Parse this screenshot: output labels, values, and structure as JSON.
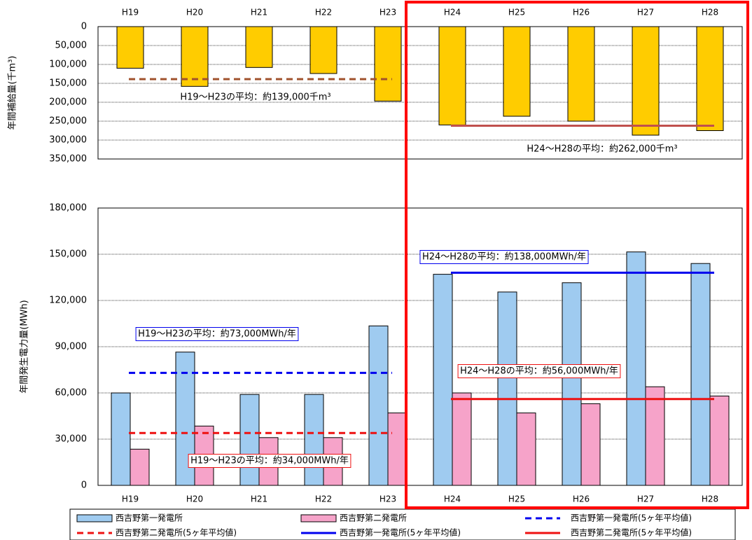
{
  "chart_data": [
    {
      "type": "bar",
      "ylabel": "年間補給量(千m³)",
      "categories": [
        "H19",
        "H20",
        "H21",
        "H22",
        "H23",
        "H24",
        "H25",
        "H26",
        "H27",
        "H28"
      ],
      "values": [
        110000,
        158000,
        108000,
        124000,
        197000,
        260000,
        237000,
        250000,
        287000,
        275000
      ],
      "color": "#ffcc00",
      "ylim": [
        0,
        350000
      ],
      "inverted": true,
      "grid": true,
      "yticks": [
        0,
        {
          "value": 50000,
          "label": "50,000"
        },
        {
          "value": 100000,
          "label": "100,000"
        },
        {
          "value": 150000,
          "label": "150,000"
        },
        {
          "value": 200000,
          "label": "200,000"
        },
        {
          "value": 250000,
          "label": "250,000"
        },
        {
          "value": 300000,
          "label": "300,000"
        },
        {
          "value": 350000,
          "label": "350,000"
        }
      ],
      "reference_lines": [
        {
          "value": 139000,
          "from": "H19",
          "to": "H23",
          "color": "#a0522d",
          "dash": true,
          "annotation": "H19～H23の平均：約139,000千m³"
        },
        {
          "value": 262000,
          "from": "H24",
          "to": "H28",
          "color": "#c0504d",
          "dash": false,
          "annotation": "H24～H28の平均：約262,000千m³"
        }
      ]
    },
    {
      "type": "grouped_bar",
      "ylabel": "年間発生電力量(MWh)",
      "categories": [
        "H19",
        "H20",
        "H21",
        "H22",
        "H23",
        "H24",
        "H25",
        "H26",
        "H27",
        "H28"
      ],
      "series": [
        {
          "name": "西吉野第一発電所",
          "color": "#9fcbf0",
          "values": [
            60000,
            86500,
            59000,
            59000,
            103500,
            137000,
            125500,
            131500,
            151500,
            144000
          ]
        },
        {
          "name": "西吉野第二発電所",
          "color": "#f6a3c9",
          "values": [
            23500,
            38500,
            31000,
            31000,
            47000,
            60000,
            47000,
            53000,
            64000,
            58000
          ]
        }
      ],
      "ylim": [
        0,
        180000
      ],
      "grid": true,
      "yticks": [
        0,
        {
          "value": 30000,
          "label": "30,000"
        },
        {
          "value": 60000,
          "label": "60,000"
        },
        {
          "value": 90000,
          "label": "90,000"
        },
        {
          "value": 120000,
          "label": "120,000"
        },
        {
          "value": 150000,
          "label": "150,000"
        },
        {
          "value": 180000,
          "label": "180,000"
        }
      ],
      "reference_lines": [
        {
          "name": "西吉野第一発電所(5ヶ年平均値)",
          "value": 73000,
          "from": "H19",
          "to": "H23",
          "color": "#0000ee",
          "dash": true,
          "annotation": "H19～H23の平均：約73,000MWh/年"
        },
        {
          "name": "西吉野第二発電所(5ヶ年平均値)",
          "value": 34000,
          "from": "H19",
          "to": "H23",
          "color": "#ee1111",
          "dash": true,
          "annotation": "H19～H23の平均：約34,000MWh/年"
        },
        {
          "name": "西吉野第一発電所(5ヶ年平均値)",
          "value": 138000,
          "from": "H24",
          "to": "H28",
          "color": "#0000ee",
          "dash": false,
          "annotation": "H24～H28の平均：約138,000MWh/年"
        },
        {
          "name": "西吉野第二発電所(5ヶ年平均値)",
          "value": 56000,
          "from": "H24",
          "to": "H28",
          "color": "#ee1111",
          "dash": false,
          "annotation": "H24～H28の平均：約56,000MWh/年"
        }
      ]
    }
  ]
}
